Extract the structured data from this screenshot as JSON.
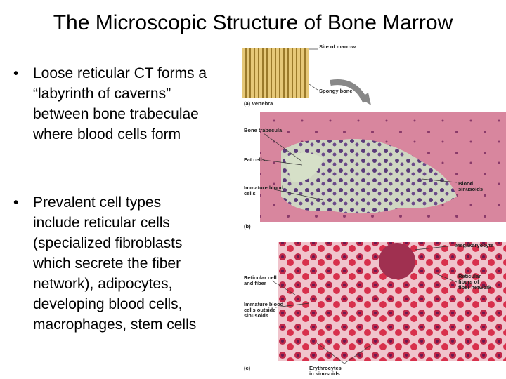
{
  "slide": {
    "title": "The Microscopic Structure of Bone Marrow",
    "bullets": [
      "Loose reticular CT forms a “labyrinth of caverns” between bone trabeculae where blood cells form",
      "Prevalent cell types include reticular cells (specialized fibroblasts which secrete the fiber network), adipocytes, developing blood cells, macrophages, stem cells"
    ]
  },
  "figure": {
    "panel_a": {
      "caption": "(a) Vertebra",
      "labels": [
        "Site of marrow",
        "Spongy bone"
      ]
    },
    "panel_b": {
      "caption": "(b)",
      "labels": [
        "Bone trabecula",
        "Fat cells",
        "Immature blood cells",
        "Blood sinusoids"
      ]
    },
    "panel_c": {
      "caption": "(c)",
      "labels": [
        "Megakaryocyte",
        "Reticular cell and fiber",
        "Reticular fibers of fiber network",
        "Immature blood cells outside sinusoids",
        "Erythrocytes in sinusoids"
      ]
    }
  }
}
